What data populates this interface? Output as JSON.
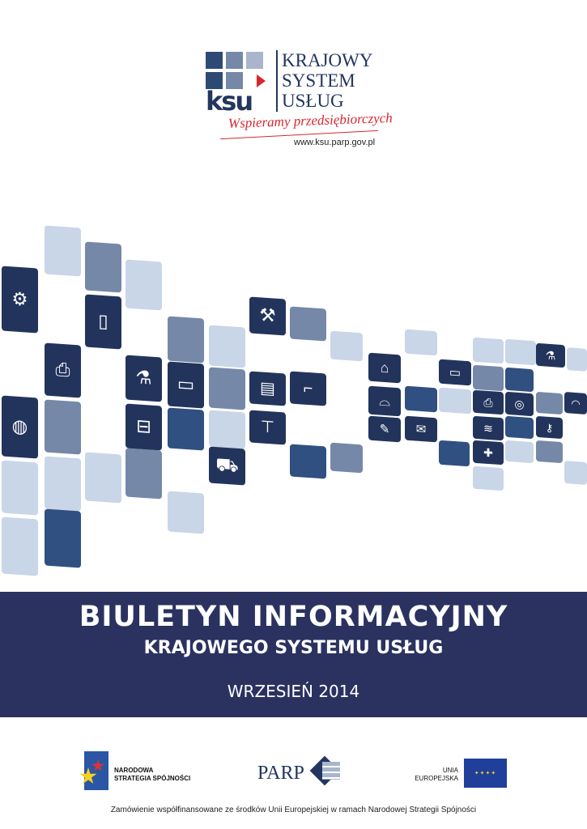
{
  "logo": {
    "abbr": "ksu",
    "lines": [
      "KRAJOWY",
      "SYSTEM",
      "USŁUG"
    ],
    "tagline": "Wspieramy przedsiębiorczych",
    "url": "www.ksu.parp.gov.pl"
  },
  "mosaic": {
    "icons": [
      "gear-icon",
      "mobile-phone-icon",
      "printer-icon",
      "globe-icon",
      "flask-icon",
      "tv-icon",
      "train-icon",
      "shopping-cart-icon",
      "wrench-icon",
      "book-icon",
      "shoe-icon",
      "shirt-icon",
      "factory-icon",
      "satellite-dish-icon",
      "paint-brush-icon",
      "mail-icon",
      "laptop-icon",
      "flask-icon",
      "printer-icon",
      "www-icon",
      "cap-icon",
      "radiator-icon",
      "key-icon",
      "first-aid-icon"
    ],
    "colors": {
      "light": "#c9d6e8",
      "mid": "#7588a8",
      "dark": "#2f5080",
      "icon": "#23345c"
    }
  },
  "banner": {
    "title": "BIULETYN INFORMACYJNY",
    "subtitle": "KRAJOWEGO SYSTEMU USŁUG",
    "date": "WRZESIEŃ 2014",
    "color": "#2b3260"
  },
  "partners": {
    "nss": [
      "NARODOWA",
      "STRATEGIA SPÓJNOŚCI"
    ],
    "parp": "PARP",
    "eu": [
      "UNIA",
      "EUROPEJSKA"
    ]
  },
  "footer": "Zamówienie współfinansowane ze środków Unii Europejskiej w ramach Narodowej Strategii Spójności"
}
